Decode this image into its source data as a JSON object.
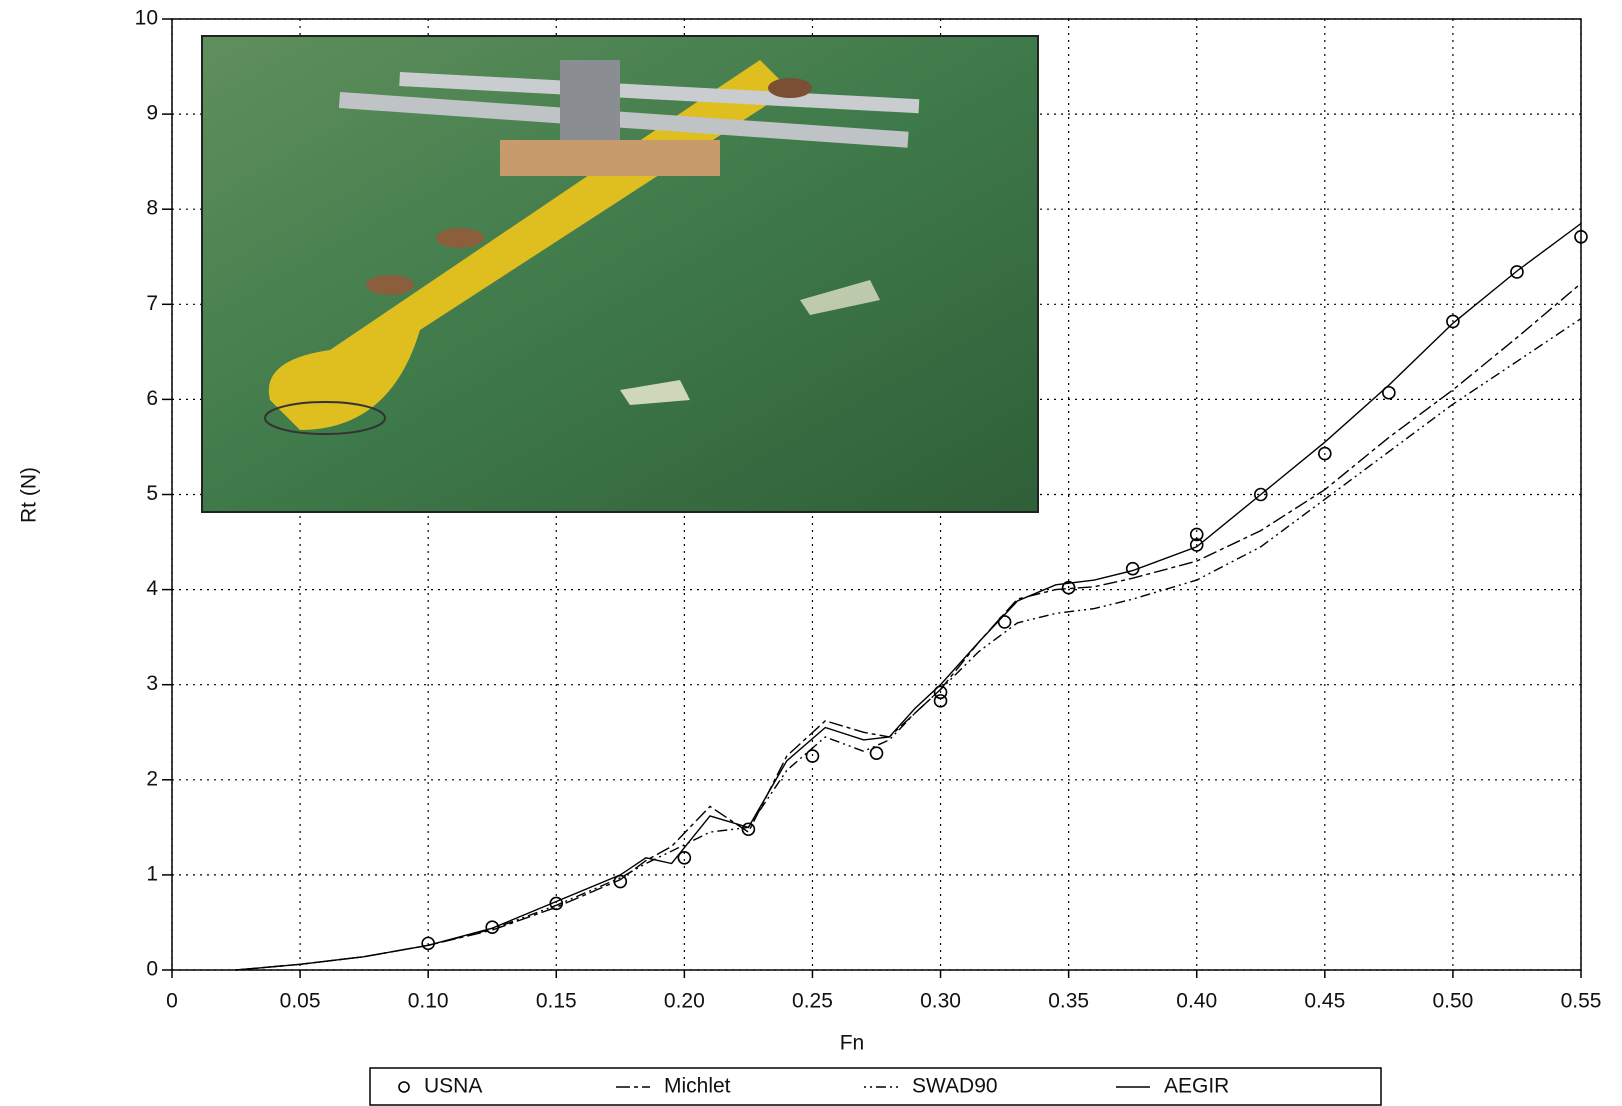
{
  "chart_data": {
    "type": "line",
    "x_label": "Fn",
    "y_label": "Rt (N)",
    "xlim": [
      0,
      0.55
    ],
    "ylim": [
      0,
      10
    ],
    "xticks": [
      0,
      0.05,
      {
        "value": 0.1,
        "label": "0.10"
      },
      0.15,
      {
        "value": 0.2,
        "label": "0.20"
      },
      0.25,
      {
        "value": 0.3,
        "label": "0.30"
      },
      0.35,
      {
        "value": 0.4,
        "label": "0.40"
      },
      0.45,
      {
        "value": 0.5,
        "label": "0.50"
      },
      0.55
    ],
    "yticks": [
      0,
      1,
      2,
      3,
      4,
      5,
      6,
      7,
      8,
      9,
      10
    ],
    "grid": true,
    "legend": "bottom",
    "series": [
      {
        "name": "USNA",
        "color": "#000000",
        "style": "markers",
        "x": [
          0.1,
          0.125,
          0.15,
          0.175,
          0.2,
          0.225,
          0.25,
          0.275,
          0.3,
          0.3,
          0.325,
          0.35,
          0.375,
          0.4,
          0.4,
          0.425,
          0.45,
          0.475,
          0.5,
          0.525,
          0.55
        ],
        "values": [
          0.28,
          0.45,
          0.7,
          0.93,
          1.18,
          1.48,
          2.25,
          2.28,
          2.83,
          2.92,
          3.66,
          4.02,
          4.22,
          4.47,
          4.58,
          5.0,
          5.43,
          6.07,
          6.82,
          7.34,
          7.71
        ]
      },
      {
        "name": "Michlet",
        "color": "#000000",
        "style": "dashed",
        "x": [
          0.025,
          0.05,
          0.075,
          0.1,
          0.125,
          0.15,
          0.175,
          0.185,
          0.195,
          0.21,
          0.225,
          0.24,
          0.255,
          0.27,
          0.28,
          0.29,
          0.3,
          0.315,
          0.33,
          0.345,
          0.36,
          0.375,
          0.4,
          0.425,
          0.45,
          0.475,
          0.5,
          0.525,
          0.55
        ],
        "values": [
          0,
          0.06,
          0.14,
          0.26,
          0.42,
          0.66,
          0.95,
          1.15,
          1.3,
          1.72,
          1.45,
          2.25,
          2.62,
          2.5,
          2.45,
          2.7,
          2.95,
          3.45,
          3.9,
          4.0,
          4.03,
          4.12,
          4.3,
          4.62,
          5.05,
          5.6,
          6.1,
          6.65,
          7.22
        ]
      },
      {
        "name": "SWAD90",
        "color": "#000000",
        "style": "dashdot",
        "x": [
          0.025,
          0.05,
          0.075,
          0.1,
          0.125,
          0.15,
          0.175,
          0.185,
          0.195,
          0.21,
          0.225,
          0.24,
          0.255,
          0.27,
          0.28,
          0.29,
          0.3,
          0.315,
          0.33,
          0.345,
          0.36,
          0.375,
          0.4,
          0.425,
          0.45,
          0.475,
          0.5,
          0.525,
          0.55
        ],
        "values": [
          0,
          0.06,
          0.14,
          0.26,
          0.43,
          0.68,
          0.97,
          1.12,
          1.25,
          1.45,
          1.5,
          2.1,
          2.45,
          2.3,
          2.42,
          2.7,
          2.95,
          3.35,
          3.65,
          3.75,
          3.8,
          3.9,
          4.1,
          4.45,
          4.95,
          5.45,
          5.95,
          6.4,
          6.85
        ]
      },
      {
        "name": "AEGIR",
        "color": "#000000",
        "style": "solid",
        "x": [
          0.025,
          0.05,
          0.075,
          0.1,
          0.125,
          0.15,
          0.175,
          0.185,
          0.195,
          0.21,
          0.225,
          0.24,
          0.255,
          0.27,
          0.28,
          0.29,
          0.3,
          0.315,
          0.33,
          0.345,
          0.36,
          0.375,
          0.4,
          0.425,
          0.45,
          0.475,
          0.5,
          0.525,
          0.55
        ],
        "values": [
          0,
          0.06,
          0.14,
          0.26,
          0.44,
          0.72,
          1.0,
          1.18,
          1.12,
          1.62,
          1.5,
          2.2,
          2.55,
          2.42,
          2.45,
          2.75,
          3.0,
          3.45,
          3.88,
          4.05,
          4.1,
          4.2,
          4.45,
          5.0,
          5.55,
          6.15,
          6.8,
          7.35,
          7.85
        ]
      }
    ]
  }
}
